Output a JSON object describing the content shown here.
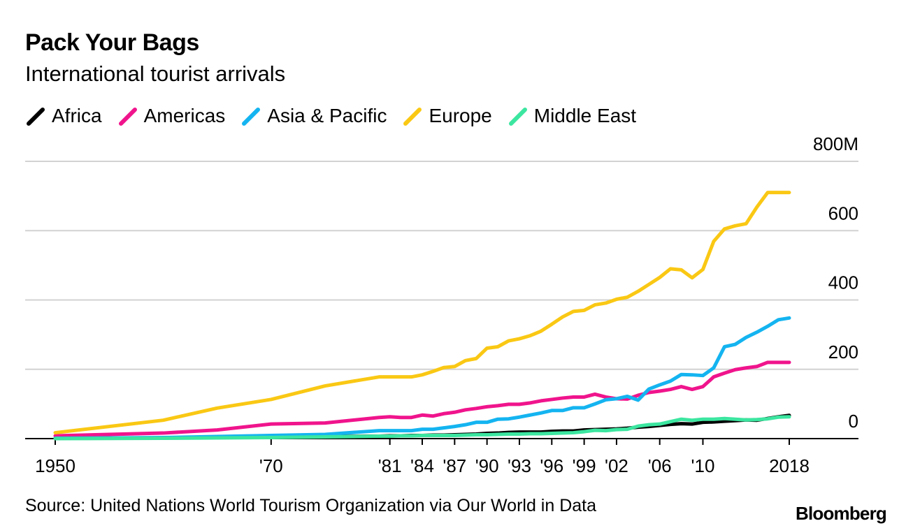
{
  "header": {
    "title": "Pack Your Bags",
    "subtitle": "International tourist arrivals"
  },
  "footer": {
    "source": "Source: United Nations World Tourism Organization via Our World in Data",
    "brand": "Bloomberg"
  },
  "colors": {
    "Africa": "#000000",
    "Americas": "#f0148c",
    "Asia & Pacific": "#14b4f0",
    "Europe": "#fac814",
    "Middle East": "#3ce6a0",
    "grid": "#d2d2d2",
    "axis": "#000000"
  },
  "chart_data": {
    "type": "line",
    "title": "Pack Your Bags",
    "subtitle": "International tourist arrivals",
    "xlabel": "",
    "ylabel": "",
    "ylim": [
      0,
      800
    ],
    "y_unit": "M",
    "y_ticks": [
      0,
      200,
      400,
      600,
      800
    ],
    "y_tick_labels": [
      "0",
      "200",
      "400",
      "600",
      "800M"
    ],
    "x_tick_labels": [
      "1950",
      "'70",
      "'81",
      "'84",
      "'87",
      "'90",
      "'93",
      "'96",
      "'99",
      "'02",
      "'06",
      "'10",
      "2018"
    ],
    "legend_position": "top",
    "grid": true,
    "x": [
      "1950",
      "1960",
      "1965",
      "1970",
      "1975",
      "1980",
      "1981",
      "1982",
      "1983",
      "1984",
      "1985",
      "1986",
      "1987",
      "1988",
      "1989",
      "1990",
      "1991",
      "1992",
      "1993",
      "1994",
      "1995",
      "1996",
      "1997",
      "1998",
      "1999",
      "2000",
      "2001",
      "2002",
      "2003",
      "2004",
      "2005",
      "2006",
      "2007",
      "2008",
      "2009",
      "2010",
      "2011",
      "2012",
      "2013",
      "2014",
      "2015",
      "2016",
      "2017",
      "2018"
    ],
    "series": [
      {
        "name": "Africa",
        "values": [
          1,
          2,
          4,
          5,
          6,
          7,
          8,
          8,
          9,
          9,
          10,
          10,
          11,
          12,
          13,
          15,
          16,
          18,
          19,
          19,
          19,
          21,
          22,
          22,
          25,
          26,
          27,
          28,
          30,
          33,
          35,
          38,
          41,
          43,
          42,
          47,
          48,
          50,
          52,
          54,
          53,
          58,
          63,
          67
        ]
      },
      {
        "name": "Americas",
        "values": [
          8,
          16,
          25,
          42,
          45,
          61,
          63,
          61,
          61,
          68,
          65,
          72,
          76,
          83,
          87,
          92,
          95,
          99,
          99,
          103,
          109,
          113,
          117,
          120,
          120,
          128,
          120,
          115,
          114,
          125,
          133,
          137,
          142,
          150,
          142,
          150,
          178,
          189,
          199,
          204,
          208,
          220,
          220,
          220
        ]
      },
      {
        "name": "Asia & Pacific",
        "values": [
          1,
          3,
          6,
          9,
          12,
          23,
          23,
          23,
          23,
          27,
          27,
          31,
          35,
          40,
          47,
          47,
          56,
          57,
          62,
          68,
          74,
          81,
          81,
          89,
          89,
          100,
          112,
          115,
          122,
          111,
          143,
          155,
          166,
          185,
          184,
          182,
          204,
          265,
          272,
          292,
          307,
          324,
          343,
          348
        ]
      },
      {
        "name": "Europe",
        "values": [
          17,
          53,
          88,
          113,
          152,
          178,
          178,
          178,
          178,
          184,
          194,
          205,
          208,
          225,
          231,
          261,
          265,
          282,
          288,
          297,
          310,
          330,
          351,
          367,
          370,
          386,
          391,
          402,
          408,
          425,
          445,
          465,
          490,
          487,
          464,
          488,
          569,
          605,
          614,
          620,
          668,
          710,
          710,
          710
        ]
      },
      {
        "name": "Middle East",
        "values": [
          0,
          1,
          2,
          3,
          5,
          7,
          7,
          8,
          8,
          9,
          9,
          9,
          9,
          10,
          11,
          11,
          12,
          13,
          13,
          14,
          14,
          15,
          16,
          17,
          20,
          24,
          23,
          26,
          27,
          36,
          40,
          42,
          49,
          56,
          53,
          56,
          56,
          58,
          56,
          54,
          55,
          57,
          62,
          63
        ]
      }
    ]
  }
}
